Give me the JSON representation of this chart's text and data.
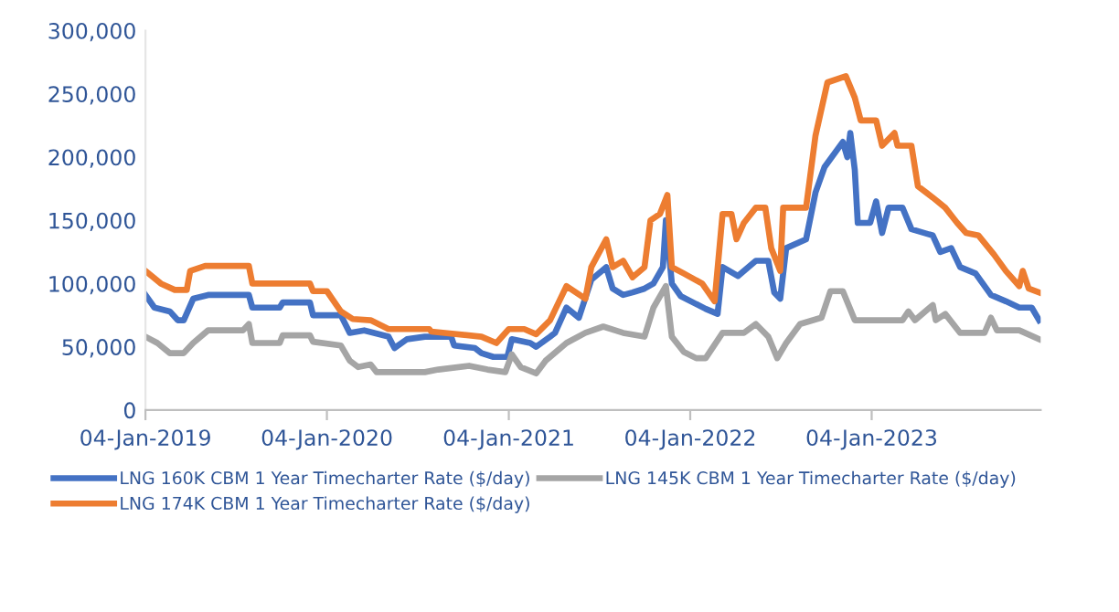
{
  "chart_data": {
    "type": "line",
    "xlim": [
      "2019-01-04",
      "2023-12-10"
    ],
    "xticks": [
      {
        "value": "2019-01-04",
        "label": "04-Jan-2019"
      },
      {
        "value": "2020-01-04",
        "label": "04-Jan-2020"
      },
      {
        "value": "2021-01-04",
        "label": "04-Jan-2021"
      },
      {
        "value": "2022-01-04",
        "label": "04-Jan-2022"
      },
      {
        "value": "2023-01-04",
        "label": "04-Jan-2023"
      }
    ],
    "ylim": [
      0,
      300000
    ],
    "yticks": [
      0,
      {
        "value": 50000,
        "label": "50,000"
      },
      {
        "value": 100000,
        "label": "100,000"
      },
      {
        "value": 150000,
        "label": "150,000"
      },
      {
        "value": 200000,
        "label": "200,000"
      },
      {
        "value": 250000,
        "label": "250,000"
      },
      {
        "value": 300000,
        "label": "300,000"
      }
    ],
    "grid": false,
    "legend": "bottom",
    "marker": "none",
    "line_style": "solid",
    "series": [
      {
        "name": "LNG 160K CBM 1 Year Timecharter Rate ($/day)",
        "color": "#4472c4",
        "x": [
          "2019-01-04",
          "2019-01-22",
          "2019-02-22",
          "2019-03-10",
          "2019-03-22",
          "2019-04-10",
          "2019-05-10",
          "2019-07-31",
          "2019-08-07",
          "2019-10-01",
          "2019-10-07",
          "2019-12-01",
          "2019-12-07",
          "2020-02-01",
          "2020-02-19",
          "2020-03-19",
          "2020-05-07",
          "2020-05-19",
          "2020-06-13",
          "2020-07-19",
          "2020-09-10",
          "2020-09-16",
          "2020-10-28",
          "2020-11-10",
          "2020-12-04",
          "2021-01-01",
          "2021-01-10",
          "2021-02-16",
          "2021-02-28",
          "2021-03-28",
          "2021-04-07",
          "2021-04-30",
          "2021-05-25",
          "2021-06-19",
          "2021-07-19",
          "2021-08-01",
          "2021-08-22",
          "2021-09-10",
          "2021-10-04",
          "2021-10-22",
          "2021-11-10",
          "2021-11-16",
          "2021-11-28",
          "2021-12-16",
          "2022-02-04",
          "2022-02-28",
          "2022-03-10",
          "2022-04-10",
          "2022-05-16",
          "2022-06-10",
          "2022-06-22",
          "2022-07-04",
          "2022-07-16",
          "2022-08-25",
          "2022-09-13",
          "2022-10-01",
          "2022-11-07",
          "2022-11-16",
          "2022-11-22",
          "2022-12-01",
          "2022-12-07",
          "2023-01-01",
          "2023-01-13",
          "2023-01-25",
          "2023-02-07",
          "2023-03-07",
          "2023-03-25",
          "2023-05-07",
          "2023-05-22",
          "2023-06-13",
          "2023-07-01",
          "2023-08-01",
          "2023-09-01",
          "2023-10-01",
          "2023-10-28",
          "2023-11-22",
          "2023-12-07"
        ],
        "values": [
          91000,
          81000,
          78000,
          71000,
          71000,
          88000,
          91000,
          91000,
          81000,
          81000,
          85000,
          85000,
          75000,
          75000,
          61000,
          63000,
          58000,
          49000,
          56000,
          58000,
          58000,
          51000,
          49000,
          45000,
          42000,
          42000,
          56000,
          53000,
          50000,
          58000,
          61000,
          81000,
          73000,
          103000,
          113000,
          96000,
          91000,
          93000,
          96000,
          100000,
          113000,
          150000,
          100000,
          90000,
          80000,
          76000,
          113000,
          106000,
          118000,
          118000,
          93000,
          88000,
          128000,
          135000,
          172000,
          192000,
          212000,
          200000,
          219000,
          190000,
          148000,
          148000,
          165000,
          140000,
          160000,
          160000,
          143000,
          138000,
          125000,
          128000,
          113000,
          108000,
          91000,
          86000,
          81000,
          81000,
          71000
        ]
      },
      {
        "name": "LNG 174K CBM 1 Year Timecharter Rate ($/day)",
        "color": "#ed7d31",
        "x": [
          "2019-01-04",
          "2019-02-04",
          "2019-03-04",
          "2019-03-28",
          "2019-04-04",
          "2019-05-04",
          "2019-07-31",
          "2019-08-07",
          "2019-12-01",
          "2019-12-07",
          "2020-01-04",
          "2020-02-01",
          "2020-02-25",
          "2020-04-01",
          "2020-05-07",
          "2020-07-28",
          "2020-08-01",
          "2020-11-10",
          "2020-12-10",
          "2021-01-04",
          "2021-02-04",
          "2021-02-28",
          "2021-03-28",
          "2021-04-30",
          "2021-06-07",
          "2021-06-19",
          "2021-07-19",
          "2021-08-01",
          "2021-08-22",
          "2021-09-10",
          "2021-10-04",
          "2021-10-16",
          "2021-11-04",
          "2021-11-19",
          "2021-11-28",
          "2021-12-22",
          "2022-01-28",
          "2022-02-22",
          "2022-03-10",
          "2022-03-28",
          "2022-04-07",
          "2022-04-22",
          "2022-05-16",
          "2022-06-04",
          "2022-06-16",
          "2022-07-04",
          "2022-07-10",
          "2022-08-25",
          "2022-09-13",
          "2022-10-07",
          "2022-11-13",
          "2022-12-01",
          "2022-12-13",
          "2023-01-13",
          "2023-01-25",
          "2023-02-19",
          "2023-02-25",
          "2023-03-25",
          "2023-04-07",
          "2023-05-07",
          "2023-06-01",
          "2023-06-25",
          "2023-07-13",
          "2023-08-07",
          "2023-09-07",
          "2023-10-01",
          "2023-10-28",
          "2023-11-04",
          "2023-11-16",
          "2023-12-07"
        ],
        "values": [
          110000,
          100000,
          95000,
          95000,
          110000,
          114000,
          114000,
          100000,
          100000,
          94000,
          94000,
          78000,
          72000,
          71000,
          64000,
          64000,
          62000,
          58000,
          53000,
          64000,
          64000,
          60000,
          71000,
          98000,
          88000,
          113000,
          135000,
          113000,
          118000,
          105000,
          113000,
          150000,
          155000,
          170000,
          113000,
          108000,
          100000,
          86000,
          155000,
          155000,
          135000,
          148000,
          160000,
          160000,
          128000,
          110000,
          160000,
          160000,
          217000,
          259000,
          264000,
          247000,
          229000,
          229000,
          209000,
          219000,
          209000,
          209000,
          177000,
          168000,
          160000,
          148000,
          140000,
          138000,
          123000,
          110000,
          98000,
          110000,
          96000,
          93000
        ]
      },
      {
        "name": "LNG 145K CBM 1 Year Timecharter Rate ($/day)",
        "color": "#a5a5a5",
        "x": [
          "2019-01-04",
          "2019-01-28",
          "2019-02-22",
          "2019-03-22",
          "2019-04-10",
          "2019-05-10",
          "2019-07-19",
          "2019-07-31",
          "2019-08-07",
          "2019-10-01",
          "2019-10-07",
          "2019-12-01",
          "2019-12-07",
          "2020-02-01",
          "2020-02-19",
          "2020-03-07",
          "2020-04-01",
          "2020-04-13",
          "2020-07-19",
          "2020-08-15",
          "2020-10-16",
          "2020-11-22",
          "2020-12-28",
          "2021-01-10",
          "2021-01-28",
          "2021-02-28",
          "2021-03-19",
          "2021-04-30",
          "2021-06-07",
          "2021-07-13",
          "2021-08-22",
          "2021-10-04",
          "2021-10-22",
          "2021-11-16",
          "2021-11-28",
          "2021-12-22",
          "2022-01-16",
          "2022-02-04",
          "2022-03-10",
          "2022-04-22",
          "2022-05-16",
          "2022-06-10",
          "2022-06-28",
          "2022-07-16",
          "2022-08-13",
          "2022-09-25",
          "2022-10-13",
          "2022-11-07",
          "2022-12-01",
          "2023-03-07",
          "2023-03-19",
          "2023-04-01",
          "2023-05-07",
          "2023-05-13",
          "2023-06-01",
          "2023-07-01",
          "2023-08-19",
          "2023-09-01",
          "2023-09-13",
          "2023-10-28",
          "2023-12-07"
        ],
        "values": [
          58000,
          53000,
          45000,
          45000,
          53000,
          63000,
          63000,
          68000,
          53000,
          53000,
          59000,
          59000,
          54000,
          51000,
          39000,
          34000,
          36000,
          30000,
          30000,
          32000,
          35000,
          32000,
          30000,
          44000,
          34000,
          29000,
          39000,
          53000,
          61000,
          66000,
          61000,
          58000,
          81000,
          98000,
          58000,
          46000,
          41000,
          41000,
          61000,
          61000,
          68000,
          58000,
          41000,
          53000,
          68000,
          73000,
          94000,
          94000,
          71000,
          71000,
          78000,
          71000,
          83000,
          71000,
          76000,
          61000,
          61000,
          73000,
          63000,
          63000,
          56000
        ]
      }
    ]
  }
}
